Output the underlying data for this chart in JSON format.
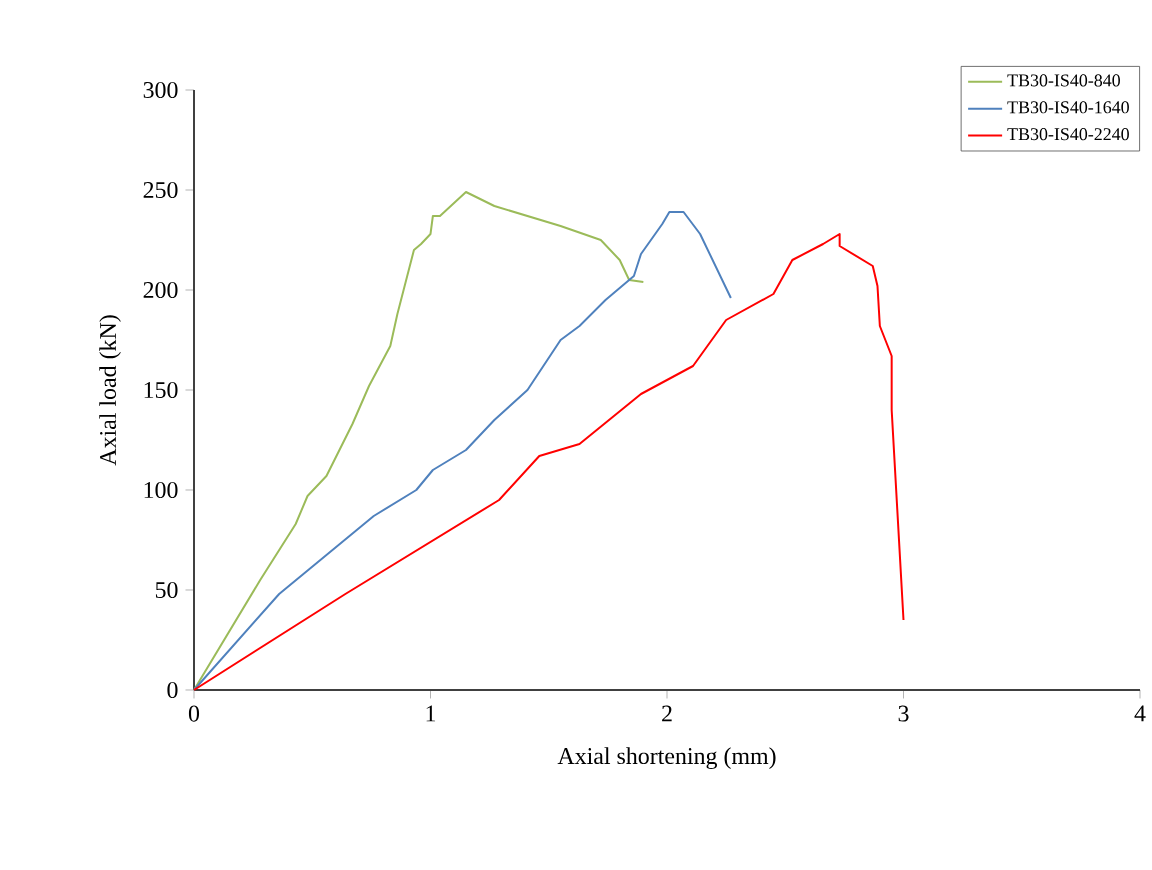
{
  "chart_data": {
    "type": "line",
    "xlabel": "Axial shortening (mm)",
    "ylabel": "Axial load (kN)",
    "xlim": [
      0,
      4
    ],
    "ylim": [
      0,
      300
    ],
    "xticks": [
      0,
      1,
      2,
      3,
      4
    ],
    "yticks": [
      0,
      50,
      100,
      150,
      200,
      250,
      300
    ],
    "grid": false,
    "legend": "top right",
    "series": [
      {
        "name": "TB30-IS40-840",
        "color": "#9bbb59",
        "x": [
          0,
          0.28,
          0.43,
          0.48,
          0.56,
          0.67,
          0.74,
          0.83,
          0.86,
          0.93,
          0.96,
          1.0,
          1.01,
          1.04,
          1.15,
          1.27,
          1.55,
          1.72,
          1.8,
          1.84,
          1.9
        ],
        "values": [
          0,
          55,
          83,
          97,
          107,
          133,
          152,
          172,
          188,
          220,
          223,
          228,
          237,
          237,
          249,
          242,
          232,
          225,
          215,
          205,
          204
        ]
      },
      {
        "name": "TB30-IS40-1640",
        "color": "#4f81bd",
        "x": [
          0,
          0.36,
          0.76,
          0.94,
          1.01,
          1.15,
          1.27,
          1.41,
          1.55,
          1.63,
          1.74,
          1.86,
          1.89,
          1.98,
          2.01,
          2.07,
          2.14,
          2.27
        ],
        "values": [
          0,
          48,
          87,
          100,
          110,
          120,
          135,
          150,
          175,
          182,
          195,
          207,
          218,
          233,
          239,
          239,
          228,
          196
        ]
      },
      {
        "name": "TB30-IS40-2240",
        "color": "#ff0000",
        "x": [
          0,
          0.64,
          1.29,
          1.46,
          1.63,
          1.89,
          2.11,
          2.25,
          2.45,
          2.53,
          2.66,
          2.73,
          2.73,
          2.87,
          2.89,
          2.9,
          2.95,
          2.95,
          3.0
        ],
        "values": [
          0,
          48,
          95,
          117,
          123,
          148,
          162,
          185,
          198,
          215,
          223,
          228,
          222,
          212,
          202,
          182,
          167,
          140,
          35
        ]
      }
    ]
  }
}
